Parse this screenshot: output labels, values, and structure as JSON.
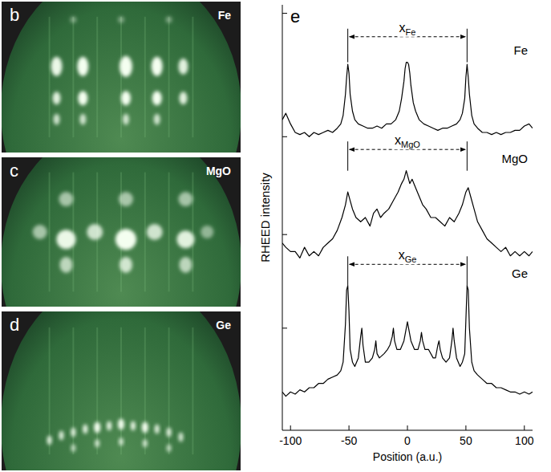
{
  "chart_data": {
    "type": "line",
    "xlabel": "Position (a.u.)",
    "ylabel": "RHEED intensity",
    "panel_label": "e",
    "xlim": [
      -107,
      107
    ],
    "xticks": [
      -100,
      -50,
      0,
      50,
      100
    ],
    "ylim": [
      0,
      100
    ],
    "yticks": [
      24,
      46,
      69,
      98
    ],
    "tick_labels": "x",
    "grid": false,
    "series": [
      {
        "name": "Fe",
        "color": "#000000",
        "x": [
          -107,
          -104,
          -100,
          -96,
          -92,
          -88,
          -84,
          -80,
          -76,
          -72,
          -68,
          -64,
          -60,
          -57,
          -55,
          -53,
          -52,
          -51,
          -50,
          -49,
          -47,
          -45,
          -42,
          -38,
          -34,
          -30,
          -26,
          -22,
          -18,
          -14,
          -10,
          -7,
          -5,
          -3,
          -2,
          -1,
          0,
          1,
          2,
          3,
          5,
          7,
          10,
          14,
          18,
          22,
          26,
          30,
          34,
          38,
          42,
          45,
          47,
          49,
          50,
          51,
          52,
          53,
          55,
          57,
          60,
          64,
          68,
          72,
          76,
          80,
          84,
          88,
          92,
          96,
          100,
          104,
          107
        ],
        "values": [
          73,
          74.5,
          72,
          70,
          69.5,
          70,
          69,
          70,
          69.5,
          70,
          70.5,
          70,
          71,
          72,
          74,
          79,
          83,
          86,
          84,
          79,
          75,
          73,
          72,
          71.5,
          71,
          71,
          71.5,
          71,
          72,
          72,
          73,
          75,
          78,
          82,
          85,
          86.5,
          86.5,
          86,
          84,
          81,
          77,
          75,
          73,
          72,
          71.5,
          71,
          70.5,
          71,
          71,
          71.5,
          72,
          73,
          74.5,
          78,
          83,
          86,
          83,
          79,
          74,
          72,
          71,
          70,
          70,
          69.5,
          70,
          69.5,
          70,
          70,
          70.5,
          70.5,
          71.5,
          72,
          71
        ]
      },
      {
        "name": "MgO",
        "color": "#000000",
        "x": [
          -107,
          -104,
          -100,
          -96,
          -92,
          -88,
          -84,
          -80,
          -76,
          -72,
          -68,
          -64,
          -60,
          -56,
          -53,
          -51,
          -49,
          -47,
          -44,
          -40,
          -36,
          -32,
          -29,
          -26,
          -23,
          -20,
          -16,
          -12,
          -8,
          -5,
          -3,
          -1,
          0,
          2,
          4,
          7,
          10,
          13,
          16,
          20,
          24,
          28,
          32,
          36,
          40,
          44,
          47,
          50,
          52,
          54,
          57,
          60,
          64,
          68,
          72,
          76,
          80,
          84,
          88,
          92,
          96,
          100,
          104,
          107
        ],
        "values": [
          44,
          43,
          42,
          42,
          40.5,
          43,
          41,
          42,
          41,
          43,
          44,
          45,
          47,
          50,
          53,
          56,
          54,
          52,
          50,
          49,
          50,
          48,
          51,
          52,
          50,
          51,
          52,
          54,
          56,
          58,
          59,
          61,
          60,
          58,
          59,
          57,
          55,
          53,
          52,
          50,
          50,
          49,
          48,
          50,
          49,
          51,
          53,
          56,
          57,
          55,
          52,
          49,
          47,
          45,
          44,
          43,
          42,
          43,
          41,
          42,
          41,
          42,
          41,
          42
        ]
      },
      {
        "name": "Ge",
        "color": "#000000",
        "x": [
          -107,
          -104,
          -100,
          -96,
          -92,
          -88,
          -84,
          -80,
          -76,
          -72,
          -68,
          -64,
          -60,
          -57,
          -55,
          -53,
          -52,
          -51,
          -50,
          -49,
          -47,
          -45,
          -42,
          -40,
          -39,
          -38,
          -36,
          -33,
          -30,
          -28,
          -27,
          -26,
          -24,
          -20,
          -17,
          -15,
          -13,
          -12,
          -11,
          -9,
          -6,
          -3,
          -1,
          0,
          1,
          3,
          6,
          9,
          11,
          12,
          13,
          15,
          18,
          22,
          24,
          26,
          27,
          28,
          30,
          33,
          36,
          38,
          39,
          40,
          42,
          45,
          47,
          49,
          50,
          51,
          52,
          53,
          55,
          57,
          60,
          64,
          68,
          72,
          76,
          80,
          84,
          88,
          92,
          96,
          100,
          104,
          107
        ],
        "values": [
          9,
          8,
          9,
          8.5,
          9.5,
          9,
          10,
          10,
          11,
          11,
          12,
          12.5,
          13,
          14,
          16,
          25,
          33,
          34,
          28,
          19,
          16,
          15,
          17,
          22,
          24,
          20,
          16,
          16,
          17,
          19,
          21,
          18,
          17,
          18,
          19,
          20,
          22,
          24,
          21,
          19,
          19,
          21,
          24,
          25.5,
          24,
          21,
          19,
          19,
          21,
          23,
          21,
          19,
          19,
          17,
          17,
          20,
          21,
          19,
          17,
          16,
          17,
          21,
          24,
          21,
          17,
          15,
          16,
          18,
          26,
          34,
          33,
          24,
          16,
          14,
          13,
          12,
          11,
          11,
          10,
          10,
          9.5,
          9,
          9,
          8.5,
          9,
          8.5,
          9
        ]
      }
    ],
    "annotations": [
      {
        "text": "x",
        "subscript": "Fe",
        "x": [
          -51,
          51
        ]
      },
      {
        "text": "x",
        "subscript": "MgO",
        "x": [
          -51,
          51
        ]
      },
      {
        "text": "x",
        "subscript": "Ge",
        "x": [
          -51,
          51
        ]
      }
    ],
    "images": [
      {
        "letter": "b",
        "label": "Fe"
      },
      {
        "letter": "c",
        "label": "MgO"
      },
      {
        "letter": "d",
        "label": "Ge"
      }
    ]
  }
}
